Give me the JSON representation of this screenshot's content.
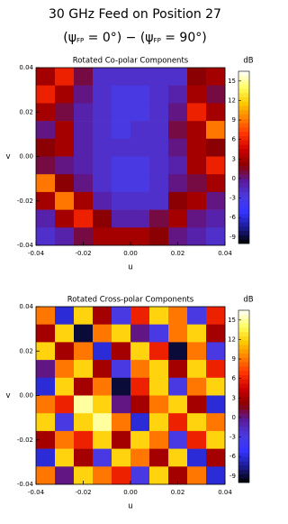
{
  "title": "30 GHz Feed on Position 27",
  "subtitle_parts": [
    "(ψ",
    "FP",
    " = 0°) − (ψ",
    "FP",
    " = 90°)"
  ],
  "chart_data": [
    {
      "type": "heatmap",
      "title": "Rotated Co-polar Components",
      "xlabel": "u",
      "ylabel": "v",
      "colorbar_label": "dB",
      "x": [
        -0.036,
        -0.028,
        -0.02,
        -0.012,
        -0.004,
        0.004,
        0.012,
        0.02,
        0.028,
        0.036
      ],
      "y": [
        0.036,
        0.028,
        0.02,
        0.012,
        0.004,
        -0.004,
        -0.012,
        -0.02,
        -0.028,
        -0.036
      ],
      "z": [
        [
          3,
          6,
          1,
          -2,
          -2,
          -2,
          -2,
          -2,
          2,
          3
        ],
        [
          6,
          3,
          0,
          -2,
          -3,
          -3,
          -2,
          -1,
          3,
          1
        ],
        [
          3,
          1,
          -1,
          -2,
          -3,
          -3,
          -2,
          0,
          6,
          3
        ],
        [
          0,
          3,
          -1,
          -2,
          -3,
          -2,
          -2,
          1,
          3,
          9
        ],
        [
          2,
          3,
          -1,
          -2,
          -2,
          -2,
          -2,
          0,
          3,
          2
        ],
        [
          1,
          0,
          -1,
          -2,
          -3,
          -3,
          -2,
          -1,
          3,
          6
        ],
        [
          9,
          2,
          0,
          -2,
          -3,
          -3,
          -2,
          0,
          1,
          3
        ],
        [
          3,
          9,
          3,
          -1,
          -2,
          -2,
          -2,
          2,
          3,
          0
        ],
        [
          -1,
          3,
          6,
          2,
          -1,
          -1,
          1,
          3,
          0,
          -1
        ],
        [
          -2,
          -1,
          1,
          3,
          3,
          3,
          2,
          0,
          -1,
          -2
        ]
      ],
      "xlim": [
        -0.04,
        0.04
      ],
      "ylim": [
        -0.04,
        0.04
      ],
      "xticks": [
        -0.04,
        -0.02,
        {
          "value": 0,
          "label": "0.00"
        },
        0.02,
        0.04
      ],
      "yticks": [
        -0.04,
        -0.02,
        {
          "value": 0,
          "label": "0.00"
        },
        0.02,
        0.04
      ],
      "zlim": [
        -10,
        16.5
      ],
      "zticks": [
        15,
        12,
        9,
        6,
        3,
        0,
        -3,
        -6,
        -9
      ],
      "colorscale": [
        "#000000",
        "#1a1a8c",
        "#3333ff",
        "#4a3ae0",
        "#5a1a9a",
        "#8b0000",
        "#cc0000",
        "#ff3300",
        "#ff8000",
        "#ffcc00",
        "#ffff66",
        "#ffffff"
      ]
    },
    {
      "type": "heatmap",
      "title": "Rotated Cross-polar Components",
      "xlabel": "u",
      "ylabel": "v",
      "colorbar_label": "dB",
      "x": [
        -0.036,
        -0.028,
        -0.02,
        -0.012,
        -0.004,
        0.004,
        0.012,
        0.02,
        0.028,
        0.036
      ],
      "y": [
        0.036,
        0.028,
        0.02,
        0.012,
        0.004,
        -0.004,
        -0.012,
        -0.02,
        -0.028,
        -0.036
      ],
      "z": [
        [
          9,
          -6,
          12,
          3,
          -3,
          6,
          12,
          9,
          -3,
          6
        ],
        [
          3,
          12,
          -9,
          9,
          12,
          0,
          -3,
          9,
          12,
          3
        ],
        [
          12,
          3,
          9,
          -6,
          3,
          12,
          6,
          -9,
          9,
          -3
        ],
        [
          0,
          9,
          12,
          3,
          -3,
          9,
          12,
          3,
          12,
          6
        ],
        [
          -6,
          12,
          3,
          9,
          -9,
          6,
          12,
          -3,
          9,
          12
        ],
        [
          9,
          6,
          15,
          12,
          0,
          3,
          9,
          12,
          3,
          -6
        ],
        [
          12,
          -3,
          12,
          15,
          9,
          -6,
          12,
          6,
          12,
          9
        ],
        [
          3,
          9,
          6,
          12,
          3,
          12,
          9,
          -3,
          6,
          12
        ],
        [
          -6,
          12,
          3,
          -3,
          12,
          9,
          3,
          12,
          -6,
          3
        ],
        [
          9,
          0,
          12,
          9,
          6,
          -3,
          12,
          3,
          9,
          -6
        ]
      ],
      "xlim": [
        -0.04,
        0.04
      ],
      "ylim": [
        -0.04,
        0.04
      ],
      "xticks": [
        -0.04,
        -0.02,
        {
          "value": 0,
          "label": "0.00"
        },
        0.02,
        0.04
      ],
      "yticks": [
        -0.04,
        -0.02,
        {
          "value": 0,
          "label": "0.00"
        },
        0.02,
        0.04
      ],
      "zlim": [
        -10,
        16.5
      ],
      "zticks": [
        15,
        12,
        9,
        6,
        3,
        0,
        -3,
        -6,
        -9
      ],
      "colorscale": [
        "#000000",
        "#1a1a8c",
        "#3333ff",
        "#4a3ae0",
        "#5a1a9a",
        "#8b0000",
        "#cc0000",
        "#ff3300",
        "#ff8000",
        "#ffcc00",
        "#ffff66",
        "#ffffff"
      ]
    }
  ]
}
